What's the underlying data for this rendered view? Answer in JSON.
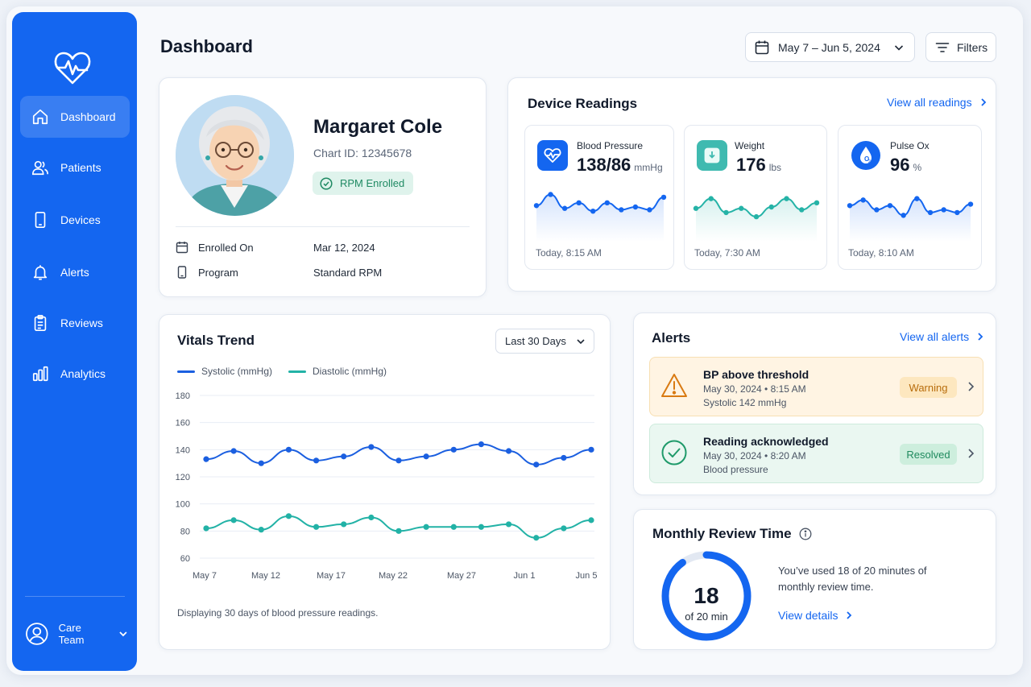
{
  "sidebar": {
    "items": [
      {
        "label": "Dashboard",
        "icon": "home-icon",
        "active": true
      },
      {
        "label": "Patients",
        "icon": "users-icon"
      },
      {
        "label": "Devices",
        "icon": "phone-icon"
      },
      {
        "label": "Alerts",
        "icon": "bell-icon"
      },
      {
        "label": "Reviews",
        "icon": "clipboard-icon"
      },
      {
        "label": "Analytics",
        "icon": "bar-chart-icon"
      }
    ],
    "user": "Care Team"
  },
  "header": {
    "title": "Dashboard",
    "date_range": "May 7 – Jun 5, 2024",
    "filters_label": "Filters"
  },
  "patient": {
    "name": "Margaret Cole",
    "chart_id": "Chart ID: 12345678",
    "badge": "RPM Enrolled",
    "enrolled_label": "Enrolled On",
    "enrolled_value": "Mar 12, 2024",
    "program_label": "Program",
    "program_value": "Standard RPM"
  },
  "device_readings": {
    "title": "Device Readings",
    "view_all": "View all readings",
    "devices": [
      {
        "label": "Blood Pressure",
        "value": "138/86",
        "unit": "mmHg",
        "time": "Today, 8:15 AM",
        "color": "#1466f0",
        "spark": [
          12,
          20,
          10,
          14,
          8,
          14,
          9,
          11,
          9,
          18
        ]
      },
      {
        "label": "Weight",
        "value": "176",
        "unit": "lbs",
        "time": "Today, 7:30 AM",
        "color": "#25b3a7",
        "spark": [
          10,
          17,
          7,
          10,
          4,
          11,
          17,
          9,
          14
        ]
      },
      {
        "label": "Pulse Ox",
        "value": "96",
        "unit": "%",
        "time": "Today, 8:10 AM",
        "color": "#1466f0",
        "spark": [
          12,
          16,
          9,
          12,
          5,
          17,
          7,
          9,
          7,
          13
        ]
      }
    ]
  },
  "vitals": {
    "title": "Vitals Trend",
    "range": "Last 30 Days",
    "footnote": "Displaying 30 days of blood pressure readings."
  },
  "chart_data": {
    "type": "line",
    "xlabel": "",
    "ylabel": "",
    "ylim": [
      60,
      180
    ],
    "yticks": [
      180,
      160,
      140,
      120,
      100,
      80,
      60
    ],
    "x_ticks": [
      "May 7",
      "May 12",
      "May 17",
      "May 22",
      "May 27",
      "Jun 1",
      "Jun 5"
    ],
    "series": [
      {
        "name": "Systolic (mmHg)",
        "color": "#1b5fe0",
        "values": [
          133,
          139,
          130,
          140,
          132,
          135,
          142,
          132,
          135,
          140,
          144,
          139,
          129,
          134,
          140
        ]
      },
      {
        "name": "Diastolic (mmHg)",
        "color": "#22b2a6",
        "values": [
          82,
          88,
          81,
          91,
          83,
          85,
          90,
          80,
          83,
          83,
          83,
          85,
          75,
          82,
          88
        ]
      }
    ],
    "grid": true,
    "legend": "top-left"
  },
  "alerts": {
    "title": "Alerts",
    "view_all": "View all alerts",
    "items": [
      {
        "title": "BP above threshold",
        "meta": "May 30, 2024 • 8:15 AM",
        "desc": "Systolic 142 mmHg",
        "badge": "Warning",
        "kind": "warning"
      },
      {
        "title": "Reading acknowledged",
        "meta": "May 30, 2024 • 8:20 AM",
        "desc": "Blood pressure",
        "badge": "Resolved",
        "kind": "resolved"
      }
    ]
  },
  "review": {
    "title": "Monthly Review Time",
    "used": "18",
    "total_label": "of 20 min",
    "used_minutes": 18,
    "total_minutes": 20,
    "text": "You’ve used 18 of 20 minutes of monthly review time.",
    "link": "View details"
  }
}
